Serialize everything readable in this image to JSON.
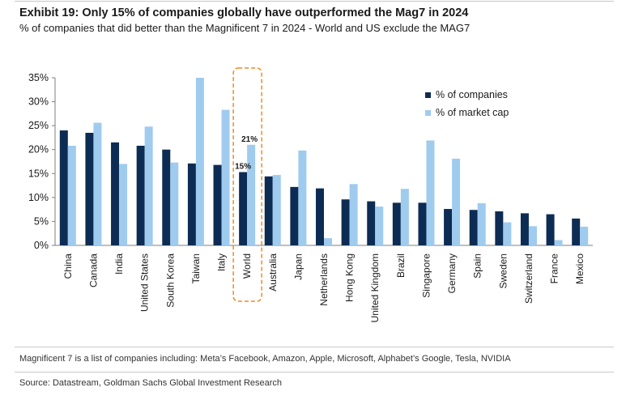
{
  "header": {
    "title": "Exhibit 19: Only 15% of companies globally have outperformed the Mag7 in 2024",
    "subtitle": "% of companies that did better than the Magnificent 7 in 2024 - World and US exclude the MAG7"
  },
  "footer": {
    "note": "Magnificent 7 is a list of companies including: Meta’s Facebook, Amazon, Apple, Microsoft, Alphabet’s Google, Tesla, NVIDIA",
    "source": "Source: Datastream, Goldman Sachs Global Investment Research"
  },
  "colors": {
    "companies": "#0d2c54",
    "market_cap": "#9fcbee",
    "highlight": "#f08a24"
  },
  "chart_data": {
    "type": "bar",
    "title": "Exhibit 19: Only 15% of companies globally have outperformed the Mag7 in 2024",
    "xlabel": "",
    "ylabel": "",
    "ylim": [
      0,
      35
    ],
    "yticks": [
      "0%",
      "5%",
      "10%",
      "15%",
      "20%",
      "25%",
      "30%",
      "35%"
    ],
    "legend_position": "top-right",
    "highlighted_category": "World",
    "categories": [
      "China",
      "Canada",
      "India",
      "United States",
      "South Korea",
      "Taiwan",
      "Italy",
      "World",
      "Australia",
      "Japan",
      "Netherlands",
      "Hong Kong",
      "United Kingdom",
      "Brazil",
      "Singapore",
      "Germany",
      "Spain",
      "Sweden",
      "Switzerland",
      "France",
      "Mexico"
    ],
    "series": [
      {
        "name": "% of companies",
        "values": [
          24.0,
          23.5,
          21.5,
          20.8,
          20.0,
          17.1,
          16.8,
          15.3,
          14.4,
          12.2,
          11.9,
          9.6,
          9.2,
          8.9,
          8.9,
          7.6,
          7.4,
          7.1,
          6.7,
          6.5,
          5.6
        ]
      },
      {
        "name": "% of market cap",
        "values": [
          20.8,
          25.6,
          17.0,
          24.8,
          17.3,
          35.0,
          28.3,
          21.0,
          14.7,
          19.8,
          1.5,
          12.8,
          8.1,
          11.8,
          21.9,
          18.1,
          8.8,
          4.8,
          4.0,
          1.1,
          3.9
        ]
      }
    ],
    "data_labels": [
      {
        "category": "World",
        "series": "% of companies",
        "text": "15%"
      },
      {
        "category": "World",
        "series": "% of market cap",
        "text": "21%"
      }
    ]
  }
}
